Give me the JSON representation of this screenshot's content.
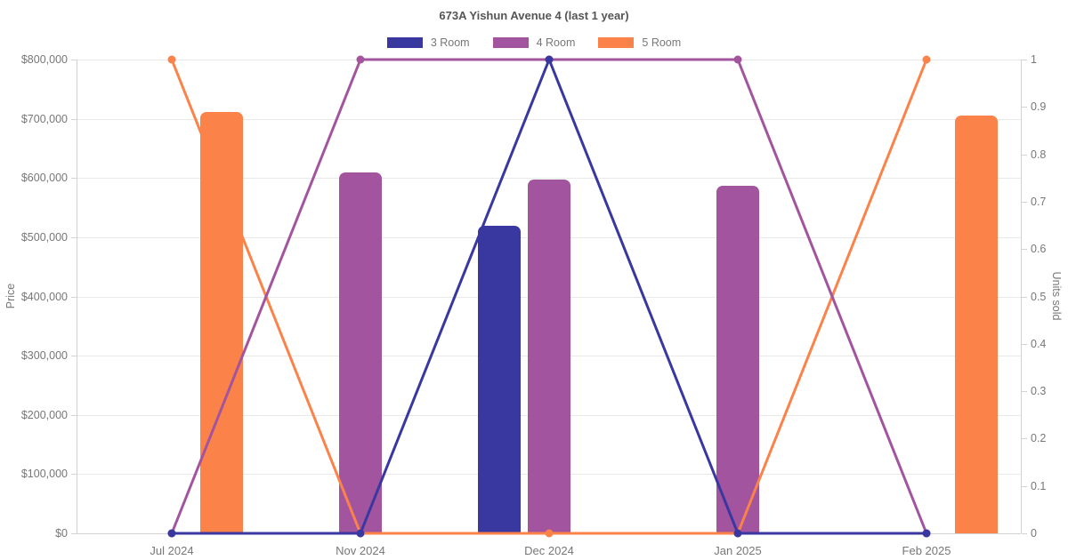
{
  "chart_data": {
    "type": "combo-bar-line",
    "title": "673A Yishun Avenue 4 (last 1 year)",
    "categories": [
      "Jul 2024",
      "Nov 2024",
      "Dec 2024",
      "Jan 2025",
      "Feb 2025"
    ],
    "legend": [
      {
        "label": "3 Room",
        "color": "#3937a0"
      },
      {
        "label": "4 Room",
        "color": "#a2559e"
      },
      {
        "label": "5 Room",
        "color": "#fb8249"
      }
    ],
    "bar_series": [
      {
        "name": "3 Room",
        "color": "#3937a0",
        "axis": "left",
        "values": [
          null,
          null,
          520000,
          null,
          null
        ]
      },
      {
        "name": "4 Room",
        "color": "#a2559e",
        "axis": "left",
        "values": [
          null,
          610000,
          597000,
          587000,
          null
        ]
      },
      {
        "name": "5 Room",
        "color": "#fb8249",
        "axis": "left",
        "values": [
          712000,
          null,
          null,
          null,
          705000
        ]
      }
    ],
    "line_series": [
      {
        "name": "5 Room",
        "color": "#fb8249",
        "axis": "right",
        "values": [
          1,
          0,
          0,
          0,
          1
        ]
      },
      {
        "name": "4 Room",
        "color": "#a2559e",
        "axis": "right",
        "values": [
          0,
          1,
          1,
          1,
          0
        ]
      },
      {
        "name": "3 Room",
        "color": "#3937a0",
        "axis": "right",
        "values": [
          0,
          0,
          1,
          0,
          0
        ]
      }
    ],
    "left_axis": {
      "title": "Price",
      "min": 0,
      "max": 800000,
      "tick_labels": [
        "$800,000",
        "$700,000",
        "$600,000",
        "$500,000",
        "$400,000",
        "$300,000",
        "$200,000",
        "$100,000",
        "$0"
      ]
    },
    "right_axis": {
      "title": "Units sold",
      "min": 0,
      "max": 1,
      "tick_labels": [
        "1",
        "0.9",
        "0.8",
        "0.7",
        "0.6",
        "0.5",
        "0.4",
        "0.3",
        "0.2",
        "0.1",
        "0"
      ]
    },
    "grid": true,
    "legend_position": "top"
  }
}
